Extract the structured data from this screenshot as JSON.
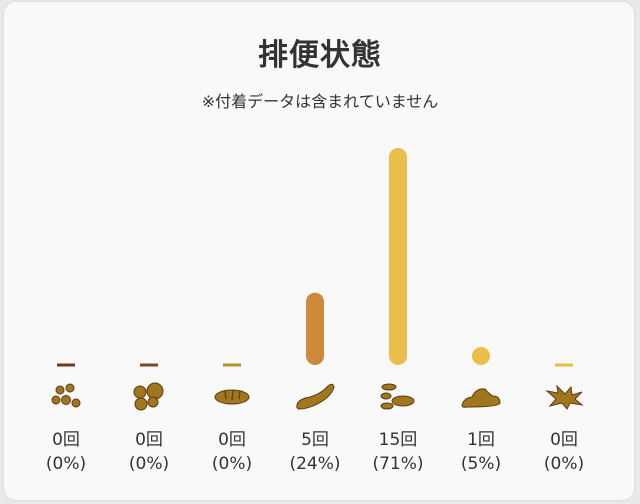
{
  "title": "排便状態",
  "subtitle": "※付着データは含まれていません",
  "chart_data": {
    "type": "bar",
    "categories": [
      "コロコロ便",
      "硬い便",
      "やや硬い便",
      "普通便",
      "やや軟らかい便",
      "泥状便",
      "水様便"
    ],
    "values": [
      0,
      0,
      0,
      5,
      15,
      1,
      0
    ],
    "percents": [
      0,
      0,
      0,
      24,
      71,
      5,
      0
    ],
    "count_labels": [
      "0回",
      "0回",
      "0回",
      "5回",
      "15回",
      "1回",
      "0回"
    ],
    "percent_labels": [
      "(0%)",
      "(0%)",
      "(0%)",
      "(24%)",
      "(71%)",
      "(5%)",
      "(0%)"
    ],
    "icons": [
      "pellets-stool-icon",
      "lumpy-stool-icon",
      "cracked-stool-icon",
      "smooth-stool-icon",
      "soft-blobs-stool-icon",
      "mushy-stool-icon",
      "watery-stool-icon"
    ],
    "colors": [
      "#6b3a1f",
      "#7a4a1c",
      "#b8912a",
      "#cd8a38",
      "#eabe4a",
      "#eabe4a",
      "#eabe4a"
    ],
    "icon_color": "#a0761f",
    "ylim": [
      0,
      15
    ]
  }
}
